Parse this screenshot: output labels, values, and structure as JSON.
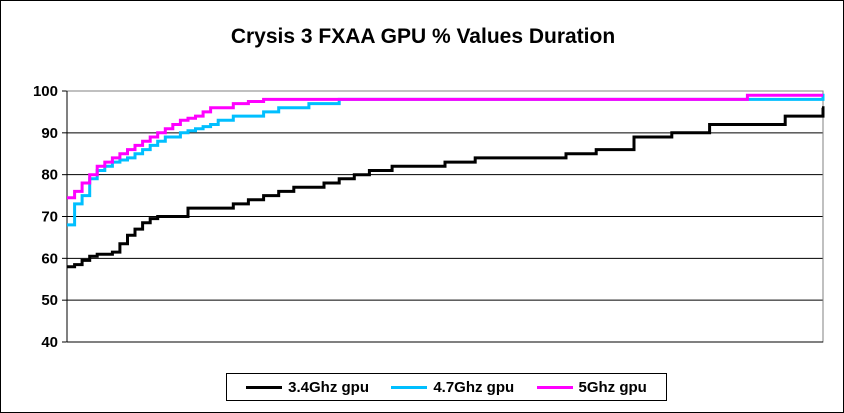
{
  "chart_data": {
    "type": "line",
    "title": "Crysis 3 FXAA GPU % Values Duration",
    "xlabel": "",
    "ylabel": "",
    "ylim": [
      40,
      100
    ],
    "yticks": [
      "40",
      "50",
      "60",
      "70",
      "80",
      "90",
      "100"
    ],
    "grid": "horizontal",
    "legend_position": "bottom",
    "x": [
      0,
      1,
      2,
      3,
      4,
      5,
      6,
      7,
      8,
      9,
      10,
      11,
      12,
      13,
      14,
      15,
      16,
      17,
      18,
      19,
      20,
      22,
      24,
      26,
      28,
      30,
      32,
      34,
      36,
      38,
      40,
      43,
      46,
      50,
      54,
      58,
      62,
      66,
      70,
      75,
      80,
      85,
      90,
      95,
      100
    ],
    "series": [
      {
        "name": "3.4Ghz gpu",
        "color": "#000000",
        "values": [
          58,
          58.5,
          59.5,
          60.5,
          61,
          61,
          61.5,
          63.5,
          65.5,
          67,
          68.5,
          69.5,
          70,
          70,
          70,
          70,
          72,
          72,
          72,
          72,
          72,
          73,
          74,
          75,
          76,
          77,
          77,
          78,
          79,
          80,
          81,
          82,
          82,
          83,
          84,
          84,
          84,
          85,
          86,
          89,
          90,
          92,
          92,
          94,
          96
        ]
      },
      {
        "name": "4.7Ghz gpu",
        "color": "#00BFFF",
        "values": [
          68,
          73,
          75,
          79,
          81,
          82,
          83,
          83.5,
          84,
          85,
          86,
          87,
          88,
          89,
          89,
          90,
          90.5,
          91,
          91.5,
          92,
          93,
          94,
          94,
          95,
          96,
          96,
          97,
          97,
          98,
          98,
          98,
          98,
          98,
          98,
          98,
          98,
          98,
          98,
          98,
          98,
          98,
          98,
          98,
          98,
          99
        ]
      },
      {
        "name": "5Ghz gpu",
        "color": "#FF00FF",
        "values": [
          74.5,
          76,
          78,
          80,
          82,
          83,
          84,
          85,
          86,
          87,
          88,
          89,
          90,
          91,
          92,
          93,
          93.5,
          94,
          95,
          96,
          96,
          97,
          97.5,
          98,
          98,
          98,
          98,
          98,
          98,
          98,
          98,
          98,
          98,
          98,
          98,
          98,
          98,
          98,
          98,
          98,
          98,
          98,
          99,
          99,
          99
        ]
      }
    ]
  }
}
